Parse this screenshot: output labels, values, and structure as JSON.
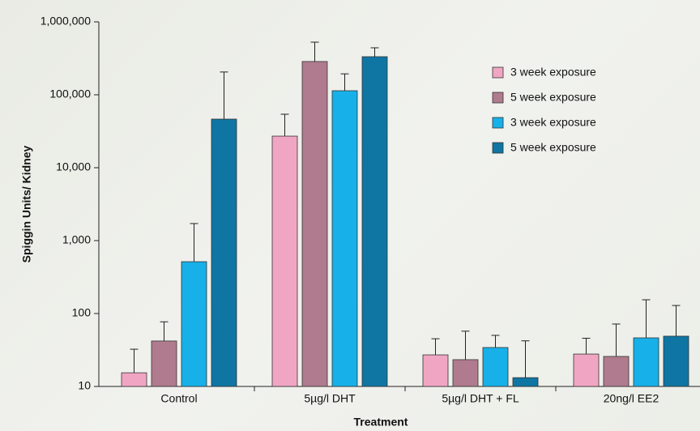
{
  "chart_data": {
    "type": "bar",
    "x_label": "Treatment",
    "y_label": "Spiggin Units/ Kidney",
    "categories": [
      "Control",
      "5µg/l DHT",
      "5µg/l DHT + FL",
      "20ng/l EE2"
    ],
    "series": [
      {
        "name": "3 week exposure",
        "color": "#f0a6c3",
        "values": [
          15.4,
          27100,
          27.1,
          27.8
        ],
        "errors": [
          17,
          27000,
          18,
          18
        ]
      },
      {
        "name": "5 week exposure",
        "color": "#b07b8e",
        "values": [
          42,
          286000,
          23.3,
          25.8
        ],
        "errors": [
          35,
          241000,
          34,
          46
        ]
      },
      {
        "name": "3 week exposure",
        "color": "#17b0e8",
        "values": [
          514,
          113700,
          34.2,
          46.4
        ],
        "errors": [
          1200,
          80000,
          16,
          108
        ]
      },
      {
        "name": "5 week exposure",
        "color": "#0f76a4",
        "values": [
          46400,
          333000,
          13.2,
          48.9
        ],
        "errors": [
          159000,
          108000,
          29,
          80
        ]
      }
    ],
    "ylim": [
      10,
      1000000
    ],
    "log_y": true,
    "yticks": [
      10,
      100,
      {
        "value": 1000,
        "label": "1,000"
      },
      {
        "value": 10000,
        "label": "10,000"
      },
      {
        "value": 100000,
        "label": "100,000"
      },
      {
        "value": 1000000,
        "label": "1,000,000"
      }
    ],
    "legend": "upper right"
  }
}
